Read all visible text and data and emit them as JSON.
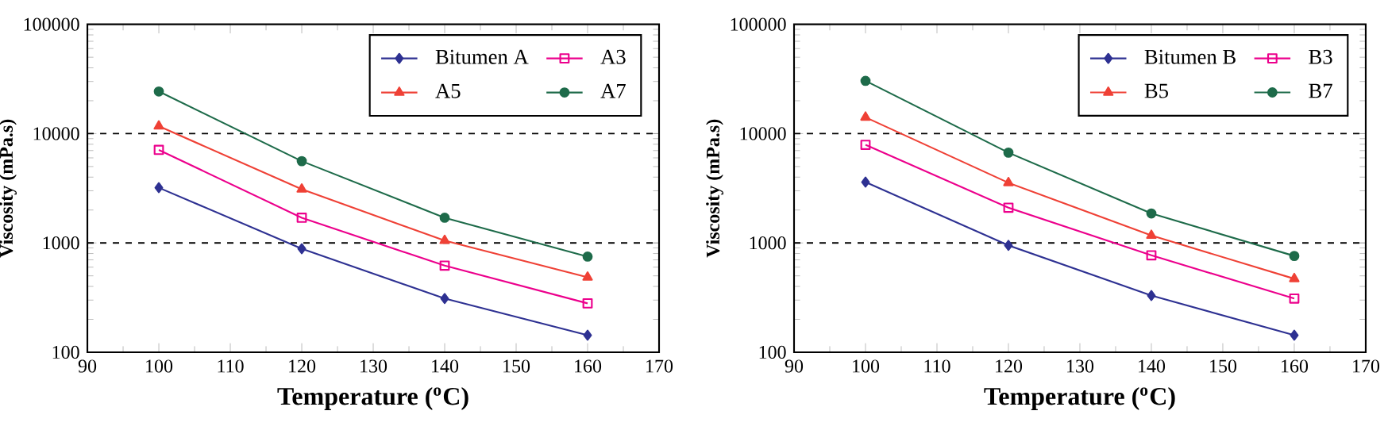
{
  "chart_data": [
    {
      "type": "line",
      "xlabel": "Temperature ($^{o}$C)",
      "ylabel": "Viscosity (mPa.s)",
      "log": "y",
      "grid": false,
      "legend": "top right",
      "x": [
        100,
        120,
        140,
        160
      ],
      "xlim": [
        90,
        170
      ],
      "xticks": [
        90,
        100,
        110,
        120,
        130,
        140,
        150,
        160,
        170
      ],
      "ylim": [
        100,
        100000
      ],
      "yticks": [
        100,
        1000,
        10000,
        100000
      ],
      "ref_lines": [
        {
          "axis": "y",
          "value": 1000,
          "color": "#000000",
          "line_style": "dashed"
        },
        {
          "axis": "y",
          "value": 10000,
          "color": "#000000",
          "line_style": "dashed"
        }
      ],
      "series": [
        {
          "name": "Bitumen A",
          "color": "#2e3192",
          "marker": "diamond",
          "values": [
            3200,
            885,
            310,
            143
          ]
        },
        {
          "name": "A3",
          "color": "#ec008c",
          "marker": "square",
          "values": [
            7100,
            1700,
            620,
            280
          ]
        },
        {
          "name": "A5",
          "color": "#ef4136",
          "marker": "triangle",
          "values": [
            11700,
            3100,
            1050,
            485
          ]
        },
        {
          "name": "A7",
          "color": "#1e6b4a",
          "marker": "circle",
          "values": [
            24300,
            5600,
            1700,
            750
          ]
        }
      ]
    },
    {
      "type": "line",
      "xlabel": "Temperature ($^{o}$C)",
      "ylabel": "Viscosity (mPa.s)",
      "log": "y",
      "grid": false,
      "legend": "top right",
      "x": [
        100,
        120,
        140,
        160
      ],
      "xlim": [
        90,
        170
      ],
      "xticks": [
        90,
        100,
        110,
        120,
        130,
        140,
        150,
        160,
        170
      ],
      "ylim": [
        100,
        100000
      ],
      "yticks": [
        100,
        1000,
        10000,
        100000
      ],
      "ref_lines": [
        {
          "axis": "y",
          "value": 1000,
          "color": "#000000",
          "line_style": "dashed"
        },
        {
          "axis": "y",
          "value": 10000,
          "color": "#000000",
          "line_style": "dashed"
        }
      ],
      "series": [
        {
          "name": "Bitumen B",
          "color": "#2e3192",
          "marker": "diamond",
          "values": [
            3600,
            950,
            330,
            143
          ]
        },
        {
          "name": "B3",
          "color": "#ec008c",
          "marker": "square",
          "values": [
            7900,
            2100,
            770,
            310
          ]
        },
        {
          "name": "B5",
          "color": "#ef4136",
          "marker": "triangle",
          "values": [
            14100,
            3550,
            1170,
            470
          ]
        },
        {
          "name": "B7",
          "color": "#1e6b4a",
          "marker": "circle",
          "values": [
            30400,
            6700,
            1860,
            760
          ]
        }
      ]
    }
  ]
}
